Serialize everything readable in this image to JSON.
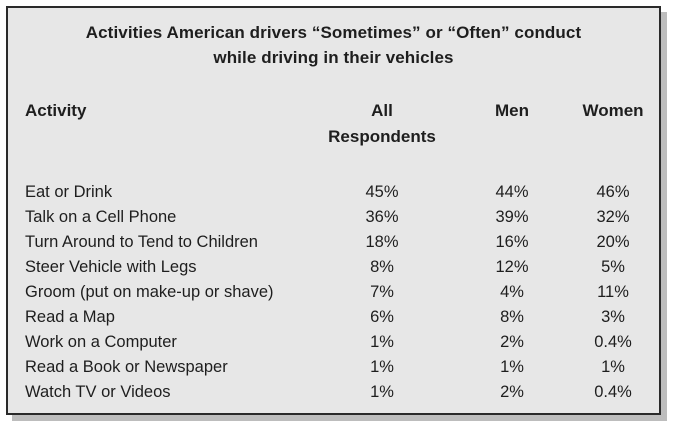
{
  "title_line1": "Activities American drivers “Sometimes” or “Often” conduct",
  "title_line2": "while driving in their vehicles",
  "chart_data": {
    "type": "table",
    "columns": [
      "Activity",
      "All Respondents",
      "Men",
      "Women"
    ],
    "header": {
      "activity": "Activity",
      "all_line1": "All",
      "all_line2": "Respondents",
      "men": "Men",
      "women": "Women"
    },
    "rows": [
      {
        "activity": "Eat or Drink",
        "all": "45%",
        "men": "44%",
        "women": "46%"
      },
      {
        "activity": "Talk on a Cell Phone",
        "all": "36%",
        "men": "39%",
        "women": "32%"
      },
      {
        "activity": "Turn Around to Tend to Children",
        "all": "18%",
        "men": "16%",
        "women": "20%"
      },
      {
        "activity": "Steer Vehicle with Legs",
        "all": "8%",
        "men": "12%",
        "women": "5%"
      },
      {
        "activity": "Groom (put on make-up or shave)",
        "all": "7%",
        "men": "4%",
        "women": "11%"
      },
      {
        "activity": "Read a Map",
        "all": "6%",
        "men": "8%",
        "women": "3%"
      },
      {
        "activity": "Work on a Computer",
        "all": "1%",
        "men": "2%",
        "women": "0.4%"
      },
      {
        "activity": "Read a Book or Newspaper",
        "all": "1%",
        "men": "1%",
        "women": "1%"
      },
      {
        "activity": "Watch TV or Videos",
        "all": "1%",
        "men": "2%",
        "women": "0.4%"
      }
    ]
  }
}
